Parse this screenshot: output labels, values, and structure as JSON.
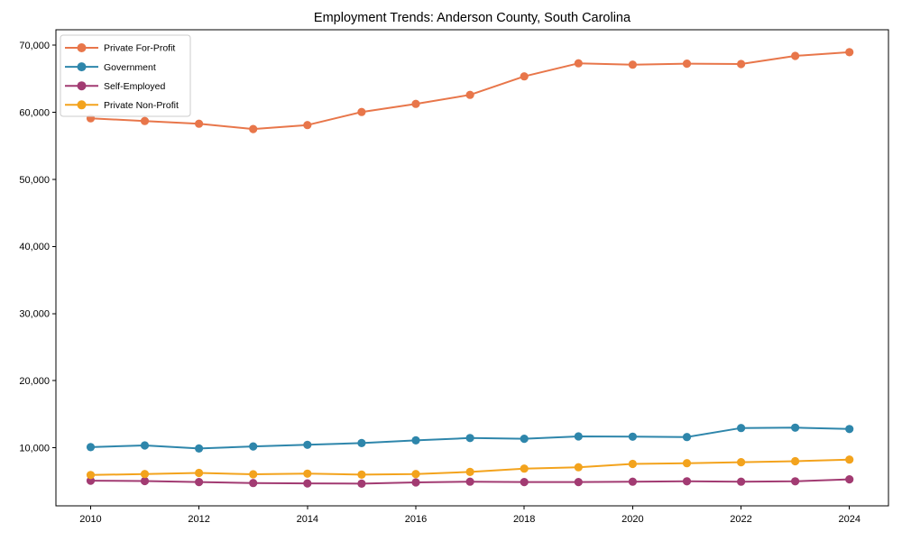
{
  "chart_data": {
    "type": "line",
    "title": "Employment Trends: Anderson County, South Carolina",
    "xlabel": "",
    "ylabel": "",
    "grid": false,
    "background": "#ffffff",
    "axis_color": "#000000",
    "legend_position": "upper-left",
    "legend_border_color": "#cccccc",
    "xlim": [
      2009.36,
      2024.72
    ],
    "ylim": [
      1350,
      72300
    ],
    "x": [
      2010,
      2011,
      2012,
      2013,
      2014,
      2015,
      2016,
      2017,
      2018,
      2019,
      2020,
      2021,
      2022,
      2023,
      2024
    ],
    "x_ticks": [
      {
        "value": 2010,
        "label": "2010"
      },
      {
        "value": 2012,
        "label": "2012"
      },
      {
        "value": 2014,
        "label": "2014"
      },
      {
        "value": 2016,
        "label": "2016"
      },
      {
        "value": 2018,
        "label": "2018"
      },
      {
        "value": 2020,
        "label": "2020"
      },
      {
        "value": 2022,
        "label": "2022"
      },
      {
        "value": 2024,
        "label": "2024"
      }
    ],
    "y_ticks": [
      {
        "value": 10000,
        "label": "10,000"
      },
      {
        "value": 20000,
        "label": "20,000"
      },
      {
        "value": 30000,
        "label": "30,000"
      },
      {
        "value": 40000,
        "label": "40,000"
      },
      {
        "value": 50000,
        "label": "50,000"
      },
      {
        "value": 60000,
        "label": "60,000"
      },
      {
        "value": 70000,
        "label": "70,000"
      }
    ],
    "series": [
      {
        "name": "Private For-Profit",
        "color": "#E8764A",
        "values": [
          59100,
          58700,
          58300,
          57500,
          58100,
          60050,
          61250,
          62600,
          65350,
          67300,
          67100,
          67250,
          67200,
          68400,
          68950
        ]
      },
      {
        "name": "Government",
        "color": "#2E86AB",
        "values": [
          10100,
          10350,
          9900,
          10200,
          10450,
          10700,
          11100,
          11450,
          11350,
          11700,
          11650,
          11600,
          12950,
          13000,
          12800
        ]
      },
      {
        "name": "Self-Employed",
        "color": "#A23B72",
        "values": [
          5100,
          5050,
          4900,
          4750,
          4700,
          4650,
          4850,
          4950,
          4900,
          4900,
          4950,
          5000,
          4950,
          5000,
          5300
        ]
      },
      {
        "name": "Private Non-Profit",
        "color": "#F3A31D",
        "values": [
          5950,
          6100,
          6250,
          6050,
          6150,
          6000,
          6100,
          6400,
          6900,
          7100,
          7600,
          7700,
          7850,
          8000,
          8250
        ]
      }
    ]
  }
}
